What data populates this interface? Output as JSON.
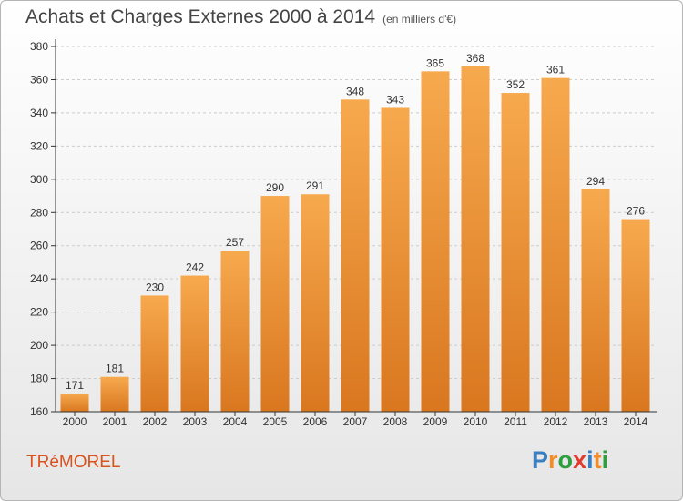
{
  "title": "Achats et Charges Externes 2000 à 2014",
  "subtitle": "(en milliers d'€)",
  "commune": "TRéMOREL",
  "logo": {
    "letters": [
      "P",
      "r",
      "o",
      "x",
      "i",
      "t",
      "i"
    ],
    "colors": [
      "#3a7fc1",
      "#f28c28",
      "#2e9e3e",
      "#e23b2e",
      "#3a7fc1",
      "#f28c28",
      "#2e9e3e"
    ]
  },
  "colors": {
    "bar_top": "#f7a94e",
    "bar_bottom": "#d9771f",
    "grid": "#cccccc",
    "axis": "#333333"
  },
  "chart_data": {
    "type": "bar",
    "categories": [
      "2000",
      "2001",
      "2002",
      "2003",
      "2004",
      "2005",
      "2006",
      "2007",
      "2008",
      "2009",
      "2010",
      "2011",
      "2012",
      "2013",
      "2014"
    ],
    "values": [
      171,
      181,
      230,
      242,
      257,
      290,
      291,
      348,
      343,
      365,
      368,
      352,
      361,
      294,
      276
    ],
    "ylim": [
      160,
      380
    ],
    "yticks": [
      160,
      180,
      200,
      220,
      240,
      260,
      280,
      300,
      320,
      340,
      360,
      380
    ],
    "grid": true
  }
}
